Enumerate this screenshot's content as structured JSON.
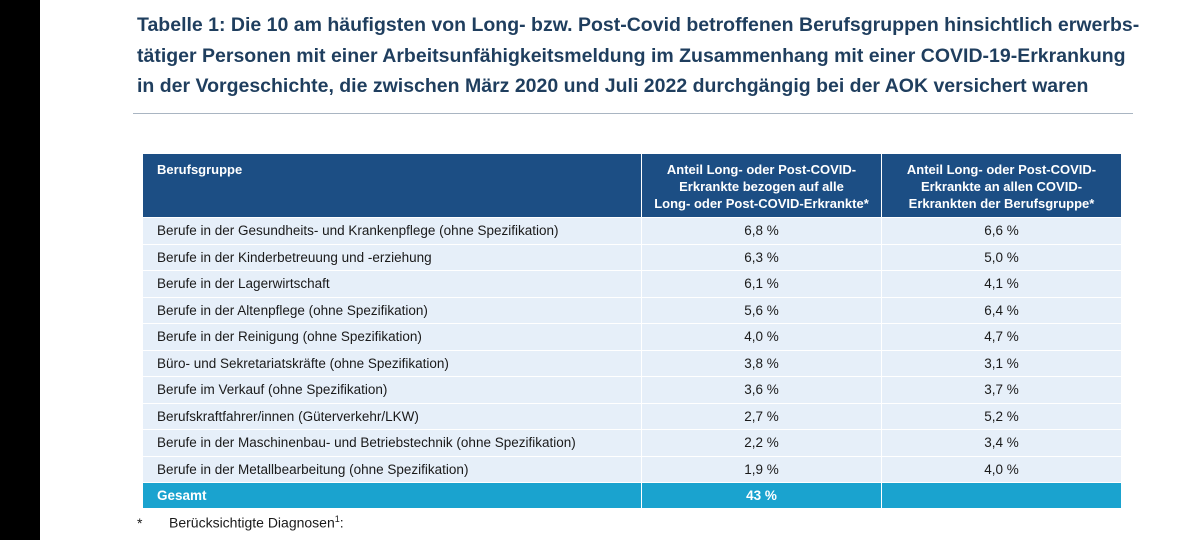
{
  "title": "Tabelle 1: Die 10 am häufigsten von Long- bzw. Post-Covid betroffenen Berufsgruppen hinsichtlich erwerbs-tätiger Personen mit einer Arbeitsunfähigkeitsmeldung im Zusammenhang mit einer COVID-19-Erkrankung in der Vorgeschichte, die zwischen März 2020 und Juli 2022 durchgängig bei der AOK versichert waren",
  "table": {
    "headers": {
      "group": "Berufsgruppe",
      "share_all": [
        "Anteil Long- oder Post-COVID-",
        "Erkrankte bezogen auf alle",
        "Long- oder Post-COVID-Erkrankte*"
      ],
      "share_group": [
        "Anteil Long- oder Post-COVID-",
        "Erkrankte an allen COVID-",
        "Erkrankten der Berufsgruppe*"
      ]
    },
    "rows": [
      {
        "group": "Berufe in der Gesundheits- und Krankenpflege (ohne Spezifikation)",
        "share_all": "6,8 %",
        "share_group": "6,6 %"
      },
      {
        "group": "Berufe in der Kinderbetreuung und -erziehung",
        "share_all": "6,3 %",
        "share_group": "5,0 %"
      },
      {
        "group": "Berufe in der Lagerwirtschaft",
        "share_all": "6,1 %",
        "share_group": "4,1 %"
      },
      {
        "group": "Berufe in der Altenpflege (ohne Spezifikation)",
        "share_all": "5,6 %",
        "share_group": "6,4 %"
      },
      {
        "group": "Berufe in der Reinigung (ohne Spezifikation)",
        "share_all": "4,0 %",
        "share_group": "4,7 %"
      },
      {
        "group": "Büro- und Sekretariatskräfte (ohne Spezifikation)",
        "share_all": "3,8 %",
        "share_group": "3,1 %"
      },
      {
        "group": "Berufe im Verkauf (ohne Spezifikation)",
        "share_all": "3,6 %",
        "share_group": "3,7 %"
      },
      {
        "group": "Berufskraftfahrer/innen (Güterverkehr/LKW)",
        "share_all": "2,7 %",
        "share_group": "5,2 %"
      },
      {
        "group": "Berufe in der Maschinenbau- und Betriebstechnik (ohne Spezifikation)",
        "share_all": "2,2 %",
        "share_group": "3,4 %"
      },
      {
        "group": "Berufe in der Metallbearbeitung (ohne Spezifikation)",
        "share_all": "1,9 %",
        "share_group": "4,0 %"
      }
    ],
    "total": {
      "group": "Gesamt",
      "share_all": "43 %",
      "share_group": ""
    }
  },
  "footnote": {
    "mark": "*",
    "text": "Berücksichtigte Diagnosen",
    "sup": "1",
    "suffix": ":"
  },
  "colors": {
    "title": "#1f3e5e",
    "header_bg": "#1c4e84",
    "row_bg": "#e6eff9",
    "total_bg": "#1aa3cf"
  }
}
